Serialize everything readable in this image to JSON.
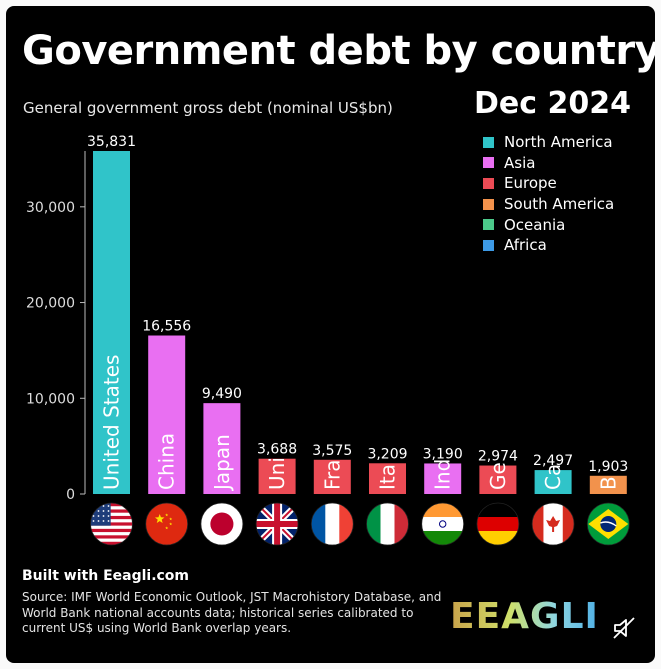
{
  "chart_data": {
    "type": "bar",
    "title": "Government debt by country",
    "subtitle": "General government gross debt (nominal US$bn)",
    "date": "Dec 2024",
    "ylabel": "",
    "xlabel": "",
    "ylim": [
      0,
      35831
    ],
    "yticks": [
      "0",
      "10,000",
      "20,000",
      "30,000"
    ],
    "ytick_values": [
      0,
      10000,
      20000,
      30000
    ],
    "regions": [
      {
        "name": "North America",
        "color": "#30c4c9"
      },
      {
        "name": "Asia",
        "color": "#e96ff2"
      },
      {
        "name": "Europe",
        "color": "#ec4b55"
      },
      {
        "name": "South America",
        "color": "#f2924c"
      },
      {
        "name": "Oceania",
        "color": "#4cc98a"
      },
      {
        "name": "Africa",
        "color": "#3d9ae6"
      }
    ],
    "bars": [
      {
        "label": "United States",
        "value": 35831,
        "value_label": "35,831",
        "region": "North America",
        "flag": "us-flag-icon"
      },
      {
        "label": "China",
        "value": 16556,
        "value_label": "16,556",
        "region": "Asia",
        "flag": "china-flag-icon"
      },
      {
        "label": "Japan",
        "value": 9490,
        "value_label": "9,490",
        "region": "Asia",
        "flag": "japan-flag-icon"
      },
      {
        "label": "Uni",
        "value": 3688,
        "value_label": "3,688",
        "region": "Europe",
        "flag": "uk-flag-icon"
      },
      {
        "label": "Fra",
        "value": 3575,
        "value_label": "3,575",
        "region": "Europe",
        "flag": "france-flag-icon"
      },
      {
        "label": "Ita",
        "value": 3209,
        "value_label": "3,209",
        "region": "Europe",
        "flag": "italy-flag-icon"
      },
      {
        "label": "Ind",
        "value": 3190,
        "value_label": "3,190",
        "region": "Asia",
        "flag": "india-flag-icon"
      },
      {
        "label": "Ge",
        "value": 2974,
        "value_label": "2,974",
        "region": "Europe",
        "flag": "germany-flag-icon"
      },
      {
        "label": "Ca",
        "value": 2497,
        "value_label": "2,497",
        "region": "North America",
        "flag": "canada-flag-icon"
      },
      {
        "label": "B",
        "value": 1903,
        "value_label": "1,903",
        "region": "South America",
        "flag": "brazil-flag-icon"
      }
    ]
  },
  "footer": {
    "built_with": "Built with Eeagli.com",
    "source": "Source: IMF World Economic Outlook, JST Macrohistory Database, and World Bank national accounts data; historical series calibrated to current US$ using World Bank overlap years.",
    "logo_text": "EEAGLI"
  }
}
